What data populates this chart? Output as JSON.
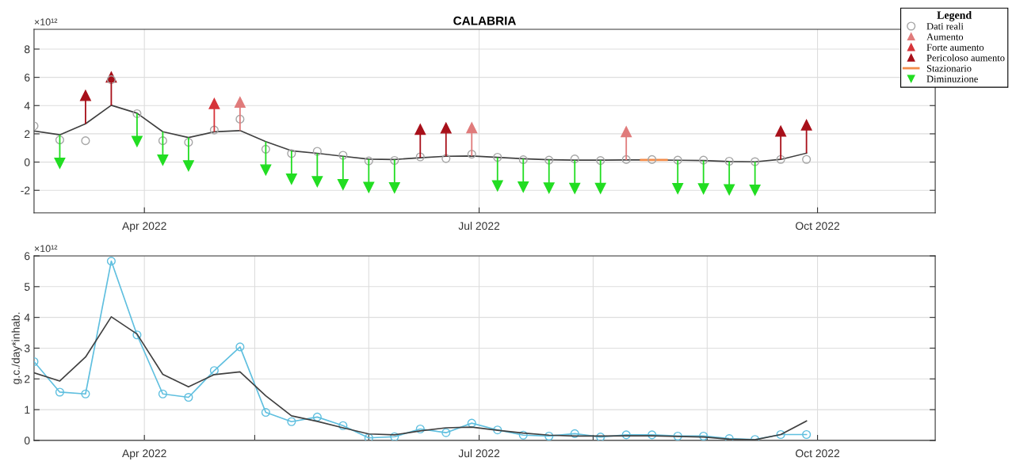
{
  "chart_data": [
    {
      "type": "line",
      "title": "CALABRIA",
      "annotations": [
        "×10¹²"
      ],
      "x": [
        "2022-03-02",
        "2022-03-09",
        "2022-03-16",
        "2022-03-23",
        "2022-03-30",
        "2022-04-06",
        "2022-04-13",
        "2022-04-20",
        "2022-04-27",
        "2022-05-04",
        "2022-05-11",
        "2022-05-18",
        "2022-05-25",
        "2022-06-01",
        "2022-06-08",
        "2022-06-15",
        "2022-06-22",
        "2022-06-29",
        "2022-07-06",
        "2022-07-13",
        "2022-07-20",
        "2022-07-27",
        "2022-08-03",
        "2022-08-10",
        "2022-08-17",
        "2022-08-24",
        "2022-08-31",
        "2022-09-07",
        "2022-09-14",
        "2022-09-21",
        "2022-09-28"
      ],
      "xlim": [
        "2022-03-02",
        "2022-11-02"
      ],
      "xticks": [
        {
          "value": "2022-04-01",
          "label": "Apr 2022"
        },
        {
          "value": "2022-07-01",
          "label": "Jul 2022"
        },
        {
          "value": "2022-10-01",
          "label": "Oct 2022"
        }
      ],
      "ylim": [
        -3.6,
        9.4
      ],
      "yticks": [
        -2,
        0,
        2,
        4,
        6,
        8
      ],
      "grid": true,
      "legend": "top right",
      "legend_title": "Legend",
      "series": [
        {
          "name": "Dati reali",
          "type": "scatter",
          "marker": "circle",
          "color": "#a6a6a6",
          "values": [
            2.56,
            1.57,
            1.51,
            5.83,
            3.43,
            1.51,
            1.4,
            2.27,
            3.04,
            0.91,
            0.61,
            0.76,
            0.48,
            0.08,
            0.12,
            0.37,
            0.25,
            0.56,
            0.34,
            0.17,
            0.14,
            0.22,
            0.11,
            0.18,
            0.18,
            0.14,
            0.14,
            0.06,
            0.03,
            0.19,
            0.19
          ]
        },
        {
          "marker": "none",
          "color": "#404040",
          "values": [
            2.2,
            1.93,
            2.71,
            4.02,
            3.46,
            2.15,
            1.74,
            2.14,
            2.23,
            1.45,
            0.8,
            0.62,
            0.41,
            0.21,
            0.18,
            0.31,
            0.41,
            0.43,
            0.33,
            0.24,
            0.17,
            0.14,
            0.14,
            0.15,
            0.15,
            0.13,
            0.11,
            0.04,
            0.02,
            0.19,
            0.63
          ]
        },
        {
          "name": "Aumento",
          "type": "scatter",
          "marker": "triangle",
          "color": "#e07b7b",
          "x": [
            "2022-04-27",
            "2022-06-29",
            "2022-08-10"
          ],
          "values": [
            4.23,
            2.43,
            2.15
          ],
          "errors": [
            [
              2.23,
              4.23
            ],
            [
              0.43,
              2.43
            ],
            [
              0.15,
              2.15
            ]
          ]
        },
        {
          "name": "Forte aumento",
          "type": "scatter",
          "marker": "triangle",
          "color": "#d6343a",
          "x": [
            "2022-04-20"
          ],
          "values": [
            4.14
          ],
          "errors": [
            [
              2.14,
              4.14
            ]
          ]
        },
        {
          "name": "Pericoloso aumento",
          "type": "scatter",
          "marker": "triangle",
          "color": "#a8101a",
          "x": [
            "2022-03-16",
            "2022-03-23",
            "2022-06-15",
            "2022-06-22",
            "2022-09-21",
            "2022-09-28"
          ],
          "values": [
            4.71,
            6.02,
            2.31,
            2.41,
            2.19,
            2.63
          ],
          "errors": [
            [
              2.71,
              4.71
            ],
            [
              4.02,
              6.02
            ],
            [
              0.31,
              2.31
            ],
            [
              0.41,
              2.41
            ],
            [
              0.19,
              2.19
            ],
            [
              0.63,
              2.63
            ]
          ]
        },
        {
          "name": "Stazionario",
          "type": "line",
          "marker": "none",
          "color": "#f28c4a",
          "x": [
            "2022-08-14",
            "2022-08-21"
          ],
          "values": [
            0.15,
            0.15
          ]
        },
        {
          "name": "Diminuzione",
          "type": "scatter",
          "marker": "triangle",
          "color": "#22dd22",
          "x": [
            "2022-03-09",
            "2022-03-30",
            "2022-04-06",
            "2022-04-13",
            "2022-05-04",
            "2022-05-11",
            "2022-05-18",
            "2022-05-25",
            "2022-06-01",
            "2022-06-08",
            "2022-07-06",
            "2022-07-13",
            "2022-07-20",
            "2022-07-27",
            "2022-08-03",
            "2022-08-24",
            "2022-08-31",
            "2022-09-07",
            "2022-09-14"
          ],
          "values": [
            -0.07,
            1.46,
            0.15,
            -0.26,
            -0.55,
            -1.2,
            -1.38,
            -1.59,
            -1.79,
            -1.82,
            -1.67,
            -1.76,
            -1.83,
            -1.86,
            -1.86,
            -1.87,
            -1.89,
            -1.96,
            -1.98
          ],
          "errors": [
            [
              -0.07,
              1.93
            ],
            [
              1.46,
              3.46
            ],
            [
              0.15,
              2.15
            ],
            [
              -0.26,
              1.74
            ],
            [
              -0.55,
              1.45
            ],
            [
              -1.2,
              0.8
            ],
            [
              -1.38,
              0.62
            ],
            [
              -1.59,
              0.41
            ],
            [
              -1.79,
              0.21
            ],
            [
              -1.82,
              0.18
            ],
            [
              -1.67,
              0.33
            ],
            [
              -1.76,
              0.24
            ],
            [
              -1.83,
              0.17
            ],
            [
              -1.86,
              0.14
            ],
            [
              -1.86,
              0.14
            ],
            [
              -1.87,
              0.13
            ],
            [
              -1.89,
              0.11
            ],
            [
              -1.96,
              0.04
            ],
            [
              -1.98,
              0.02
            ]
          ]
        }
      ]
    },
    {
      "type": "line",
      "ylabel": "g.c./day*inhab.",
      "annotations": [
        "×10¹²"
      ],
      "x": [
        "2022-03-02",
        "2022-03-09",
        "2022-03-16",
        "2022-03-23",
        "2022-03-30",
        "2022-04-06",
        "2022-04-13",
        "2022-04-20",
        "2022-04-27",
        "2022-05-04",
        "2022-05-11",
        "2022-05-18",
        "2022-05-25",
        "2022-06-01",
        "2022-06-08",
        "2022-06-15",
        "2022-06-22",
        "2022-06-29",
        "2022-07-06",
        "2022-07-13",
        "2022-07-20",
        "2022-07-27",
        "2022-08-03",
        "2022-08-10",
        "2022-08-17",
        "2022-08-24",
        "2022-08-31",
        "2022-09-07",
        "2022-09-14",
        "2022-09-21",
        "2022-09-28"
      ],
      "xlim": [
        "2022-03-02",
        "2022-11-02"
      ],
      "xticks": [
        {
          "value": "2022-04-01",
          "label": "Apr 2022"
        },
        {
          "value": "2022-05-01",
          "label": null
        },
        {
          "value": "2022-06-01",
          "label": null
        },
        {
          "value": "2022-07-01",
          "label": "Jul 2022"
        },
        {
          "value": "2022-08-01",
          "label": null
        },
        {
          "value": "2022-09-01",
          "label": null
        },
        {
          "value": "2022-10-01",
          "label": "Oct 2022"
        }
      ],
      "ylim": [
        0,
        6
      ],
      "yticks": [
        0,
        1,
        2,
        3,
        4,
        5,
        6
      ],
      "grid": true,
      "series": [
        {
          "marker": "circle",
          "color": "#5fbfdf",
          "values": [
            2.56,
            1.57,
            1.51,
            5.83,
            3.43,
            1.51,
            1.4,
            2.27,
            3.04,
            0.91,
            0.61,
            0.76,
            0.48,
            0.08,
            0.12,
            0.37,
            0.25,
            0.56,
            0.34,
            0.17,
            0.14,
            0.22,
            0.11,
            0.18,
            0.18,
            0.14,
            0.14,
            0.06,
            0.03,
            0.19,
            0.19
          ]
        },
        {
          "marker": "none",
          "color": "#404040",
          "values": [
            2.2,
            1.93,
            2.71,
            4.02,
            3.46,
            2.15,
            1.74,
            2.14,
            2.23,
            1.45,
            0.8,
            0.62,
            0.41,
            0.21,
            0.18,
            0.31,
            0.41,
            0.43,
            0.33,
            0.24,
            0.17,
            0.14,
            0.14,
            0.15,
            0.15,
            0.13,
            0.11,
            0.04,
            0.02,
            0.19,
            0.63
          ]
        }
      ]
    }
  ]
}
